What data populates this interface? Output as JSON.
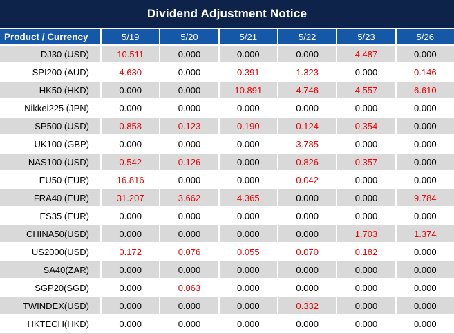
{
  "title": "Dividend Adjustment Notice",
  "table": {
    "columns": [
      "Product / Currency",
      "5/19",
      "5/20",
      "5/21",
      "5/22",
      "5/23",
      "5/26"
    ],
    "rows": [
      {
        "product": "DJ30 (USD)",
        "values": [
          "10.511",
          "0.000",
          "0.000",
          "0.000",
          "4.487",
          "0.000"
        ]
      },
      {
        "product": "SPI200 (AUD)",
        "values": [
          "4.630",
          "0.000",
          "0.391",
          "1.323",
          "0.000",
          "0.146"
        ]
      },
      {
        "product": "HK50 (HKD)",
        "values": [
          "0.000",
          "0.000",
          "10.891",
          "4.746",
          "4.557",
          "6.610"
        ]
      },
      {
        "product": "Nikkei225 (JPN)",
        "values": [
          "0.000",
          "0.000",
          "0.000",
          "0.000",
          "0.000",
          "0.000"
        ]
      },
      {
        "product": "SP500 (USD)",
        "values": [
          "0.858",
          "0.123",
          "0.190",
          "0.124",
          "0.354",
          "0.000"
        ]
      },
      {
        "product": "UK100 (GBP)",
        "values": [
          "0.000",
          "0.000",
          "0.000",
          "3.785",
          "0.000",
          "0.000"
        ]
      },
      {
        "product": "NAS100 (USD)",
        "values": [
          "0.542",
          "0.126",
          "0.000",
          "0.826",
          "0.357",
          "0.000"
        ]
      },
      {
        "product": "EU50 (EUR)",
        "values": [
          "16.816",
          "0.000",
          "0.000",
          "0.042",
          "0.000",
          "0.000"
        ]
      },
      {
        "product": "FRA40 (EUR)",
        "values": [
          "31.207",
          "3.662",
          "4.365",
          "0.000",
          "0.000",
          "9.784"
        ]
      },
      {
        "product": "ES35 (EUR)",
        "values": [
          "0.000",
          "0.000",
          "0.000",
          "0.000",
          "0.000",
          "0.000"
        ]
      },
      {
        "product": "CHINA50(USD)",
        "values": [
          "0.000",
          "0.000",
          "0.000",
          "0.000",
          "1.703",
          "1.374"
        ]
      },
      {
        "product": "US2000(USD)",
        "values": [
          "0.172",
          "0.076",
          "0.055",
          "0.070",
          "0.182",
          "0.000"
        ]
      },
      {
        "product": "SA40(ZAR)",
        "values": [
          "0.000",
          "0.000",
          "0.000",
          "0.000",
          "0.000",
          "0.000"
        ]
      },
      {
        "product": "SGP20(SGD)",
        "values": [
          "0.000",
          "0.063",
          "0.000",
          "0.000",
          "0.000",
          "0.000"
        ]
      },
      {
        "product": "TWINDEX(USD)",
        "values": [
          "0.000",
          "0.000",
          "0.000",
          "0.332",
          "0.000",
          "0.000"
        ]
      },
      {
        "product": "HKTECH(HKD)",
        "values": [
          "0.000",
          "0.000",
          "0.000",
          "0.000",
          "0.000",
          "0.000"
        ]
      }
    ]
  },
  "colors": {
    "title_bg": "#0e2349",
    "header_bg": "#1558a7",
    "header_text": "#ffffff",
    "row_bg": "#ffffff",
    "row_alt_bg": "#d9d9d9",
    "zero_value": "#000000",
    "nonzero_value": "#ee0000"
  }
}
